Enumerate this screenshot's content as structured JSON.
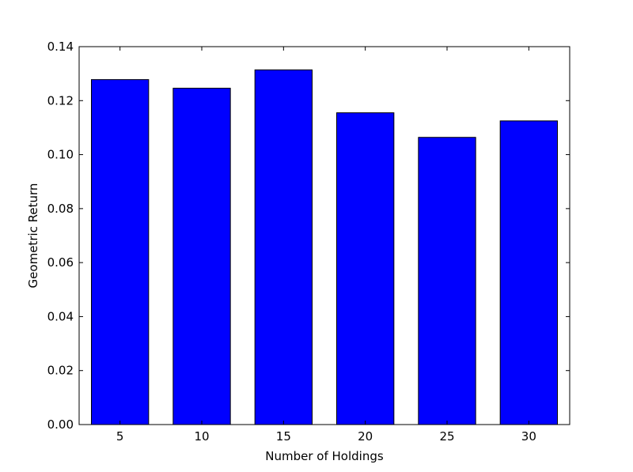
{
  "chart_data": {
    "type": "bar",
    "categories": [
      "5",
      "10",
      "15",
      "20",
      "25",
      "30"
    ],
    "values": [
      0.1278,
      0.1246,
      0.1314,
      0.1155,
      0.1064,
      0.1125
    ],
    "title": "",
    "xlabel": "Number of Holdings",
    "ylabel": "Geometric Return",
    "ylim": [
      0,
      0.14
    ],
    "yticks": [
      "0.00",
      "0.02",
      "0.04",
      "0.06",
      "0.08",
      "0.10",
      "0.12",
      "0.14"
    ],
    "bar_color": "#0000ff",
    "edge_color": "#000000",
    "grid": false
  }
}
